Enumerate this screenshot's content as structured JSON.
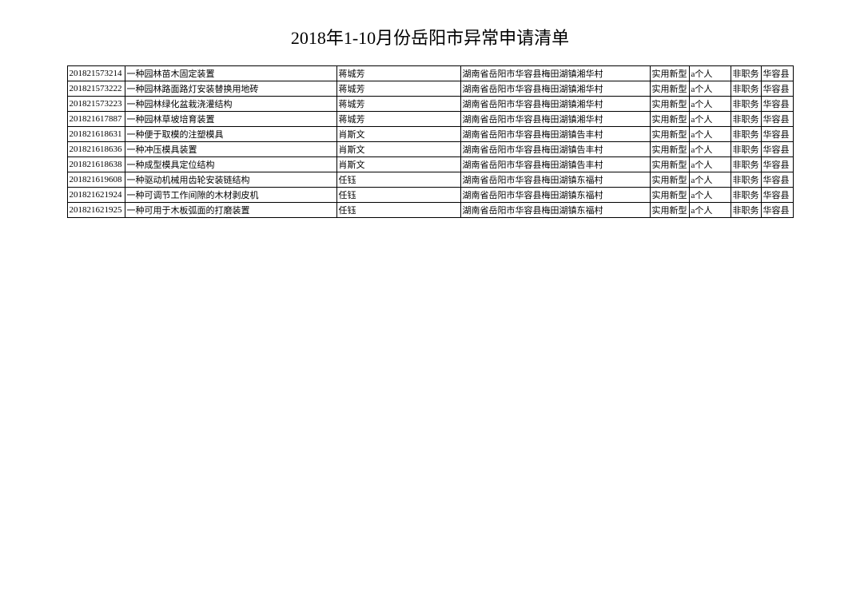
{
  "title": "2018年1-10月份岳阳市异常申请清单",
  "columns": [
    {
      "key": "id",
      "class": "col-id"
    },
    {
      "key": "name",
      "class": "col-name"
    },
    {
      "key": "applicant",
      "class": "col-applicant"
    },
    {
      "key": "address",
      "class": "col-address"
    },
    {
      "key": "type",
      "class": "col-type"
    },
    {
      "key": "category",
      "class": "col-category"
    },
    {
      "key": "service",
      "class": "col-service"
    },
    {
      "key": "county",
      "class": "col-county"
    }
  ],
  "rows": [
    {
      "id": "201821573214",
      "name": "一种园林苗木固定装置",
      "applicant": "蒋城芳",
      "address": "湖南省岳阳市华容县梅田湖镇湘华村",
      "type": "实用新型",
      "category": "a个人",
      "service": "非职务",
      "county": "华容县"
    },
    {
      "id": "201821573222",
      "name": "一种园林路面路灯安装替换用地砖",
      "applicant": "蒋城芳",
      "address": "湖南省岳阳市华容县梅田湖镇湘华村",
      "type": "实用新型",
      "category": "a个人",
      "service": "非职务",
      "county": "华容县"
    },
    {
      "id": "201821573223",
      "name": "一种园林绿化盆栽浇灌结构",
      "applicant": "蒋城芳",
      "address": "湖南省岳阳市华容县梅田湖镇湘华村",
      "type": "实用新型",
      "category": "a个人",
      "service": "非职务",
      "county": "华容县"
    },
    {
      "id": "201821617887",
      "name": "一种园林草坡培育装置",
      "applicant": "蒋城芳",
      "address": "湖南省岳阳市华容县梅田湖镇湘华村",
      "type": "实用新型",
      "category": "a个人",
      "service": "非职务",
      "county": "华容县"
    },
    {
      "id": "201821618631",
      "name": "一种便于取模的注塑模具",
      "applicant": "肖斯文",
      "address": "湖南省岳阳市华容县梅田湖镇告丰村",
      "type": "实用新型",
      "category": "a个人",
      "service": "非职务",
      "county": "华容县"
    },
    {
      "id": "201821618636",
      "name": "一种冲压模具装置",
      "applicant": "肖斯文",
      "address": "湖南省岳阳市华容县梅田湖镇告丰村",
      "type": "实用新型",
      "category": "a个人",
      "service": "非职务",
      "county": "华容县"
    },
    {
      "id": "201821618638",
      "name": "一种成型模具定位结构",
      "applicant": "肖斯文",
      "address": "湖南省岳阳市华容县梅田湖镇告丰村",
      "type": "实用新型",
      "category": "a个人",
      "service": "非职务",
      "county": "华容县"
    },
    {
      "id": "201821619608",
      "name": "一种驱动机械用齿轮安装链结构",
      "applicant": "任钰",
      "address": "湖南省岳阳市华容县梅田湖镇东福村",
      "type": "实用新型",
      "category": "a个人",
      "service": "非职务",
      "county": "华容县"
    },
    {
      "id": "201821621924",
      "name": "一种可调节工作间隙的木材剥皮机",
      "applicant": "任钰",
      "address": "湖南省岳阳市华容县梅田湖镇东福村",
      "type": "实用新型",
      "category": "a个人",
      "service": "非职务",
      "county": "华容县"
    },
    {
      "id": "201821621925",
      "name": "一种可用于木板弧面的打磨装置",
      "applicant": "任钰",
      "address": "湖南省岳阳市华容县梅田湖镇东福村",
      "type": "实用新型",
      "category": "a个人",
      "service": "非职务",
      "county": "华容县"
    }
  ]
}
